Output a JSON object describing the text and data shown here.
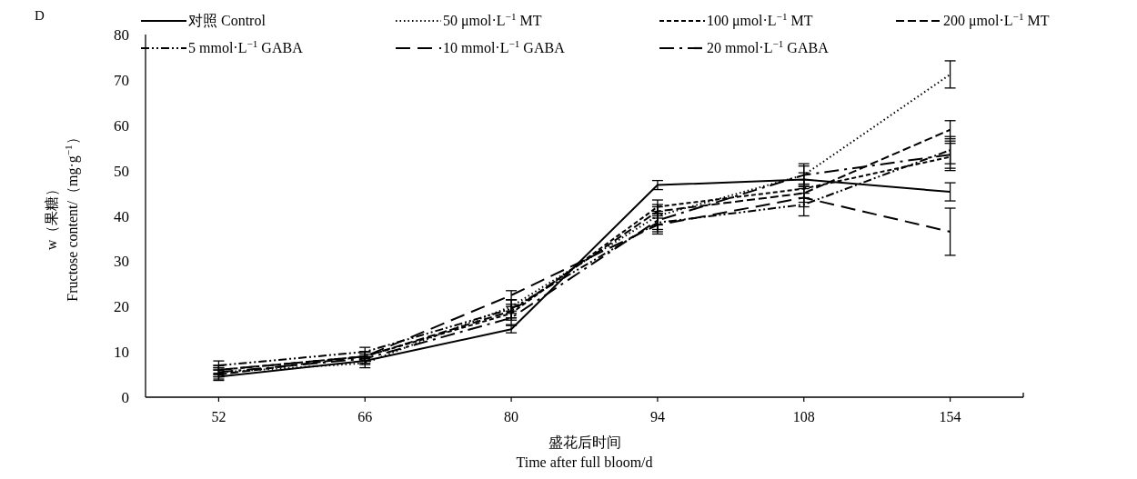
{
  "chart_data": {
    "type": "line",
    "title": "D",
    "xlabel": "盛花后时间\nTime after full bloom/d",
    "ylabel": "w（果糖）\nFructose content/（mg·g$^{−1}$）",
    "categories": [
      "52",
      "66",
      "80",
      "94",
      "108",
      "154"
    ],
    "ylim": [
      0,
      80
    ],
    "yticks": [
      0,
      10,
      20,
      30,
      40,
      50,
      60,
      70,
      80
    ],
    "grid": false,
    "legend": "top",
    "series": [
      {
        "name": "对照 Control",
        "color": "#000000",
        "line_style": "solid",
        "values": [
          4.5,
          8,
          15,
          46.8,
          48,
          45.3
        ],
        "errors": [
          0.8,
          0.8,
          0.8,
          1,
          1.5,
          2
        ]
      },
      {
        "name": "50 μmol·L$^{−1}$ MT",
        "color": "#000000",
        "line_style": "dotted",
        "values": [
          5.5,
          7.5,
          20,
          40,
          49,
          71.2
        ],
        "errors": [
          1,
          1,
          1.5,
          2,
          2.5,
          3
        ]
      },
      {
        "name": "100 μmol·L$^{−1}$ MT",
        "color": "#000000",
        "line_style": "dashed",
        "values": [
          6,
          9,
          18.5,
          42,
          46,
          53
        ],
        "errors": [
          1,
          1,
          1.5,
          1.5,
          2,
          3
        ]
      },
      {
        "name": "200 μmol·L$^{−1}$ MT",
        "color": "#000000",
        "line_style": "longdash",
        "values": [
          5,
          9,
          19,
          41,
          45,
          59
        ],
        "errors": [
          1,
          1,
          1.5,
          1.5,
          2,
          2
        ]
      },
      {
        "name": "5 mmol·L$^{−1}$ GABA",
        "color": "#000000",
        "line_style": "dashdotdot",
        "values": [
          7,
          10,
          19.5,
          38.5,
          42.5,
          54.5
        ],
        "errors": [
          1,
          1,
          2,
          2,
          2.5,
          3
        ]
      },
      {
        "name": "10 mmol·L$^{−1}$ GABA",
        "color": "#000000",
        "line_style": "verylongdash",
        "values": [
          6,
          9,
          22.5,
          38,
          44,
          36.5
        ],
        "errors": [
          1,
          1,
          1,
          2,
          2,
          5.2
        ]
      },
      {
        "name": "20 mmol·L$^{−1}$ GABA",
        "color": "#000000",
        "line_style": "longdashdot",
        "values": [
          5.5,
          8.5,
          17.5,
          39,
          49,
          53.5
        ],
        "errors": [
          1,
          1,
          1.5,
          2,
          2,
          3
        ]
      }
    ]
  }
}
